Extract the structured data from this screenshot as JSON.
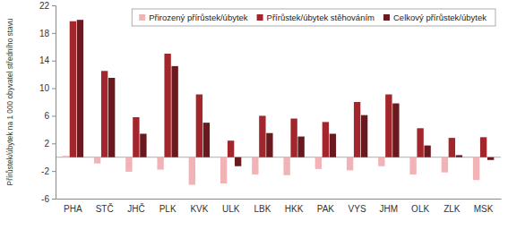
{
  "chart_data": {
    "type": "bar",
    "y_label": "Přírůstek/úbytek na 1 000 obyvatel středního stavu",
    "categories": [
      "PHA",
      "STČ",
      "JHČ",
      "PLK",
      "KVK",
      "ULK",
      "LBK",
      "HKK",
      "PAK",
      "VYS",
      "JHM",
      "OLK",
      "ZLK",
      "MSK"
    ],
    "series": [
      {
        "name": "Přirozený přírůstek/úbytek",
        "color": "#f2b3b6",
        "values": [
          0.2,
          -0.9,
          -2.1,
          -1.8,
          -4.0,
          -3.8,
          -2.5,
          -2.6,
          -1.7,
          -1.9,
          -1.3,
          -2.5,
          -2.2,
          -3.3
        ]
      },
      {
        "name": "Přírůstek/úbytek stěhováním",
        "color": "#a3262d",
        "values": [
          19.7,
          12.5,
          5.8,
          15.0,
          9.1,
          2.4,
          6.0,
          5.6,
          5.1,
          8.0,
          9.1,
          4.2,
          2.8,
          2.9
        ]
      },
      {
        "name": "Celkový přírůstek/úbytek",
        "color": "#6a1a1f",
        "values": [
          19.9,
          11.5,
          3.4,
          13.2,
          5.0,
          -1.3,
          3.5,
          3.0,
          3.4,
          6.1,
          7.8,
          1.7,
          0.3,
          -0.4
        ]
      }
    ],
    "ylim": [
      -6,
      22
    ],
    "yticks": [
      -6,
      -2,
      2,
      6,
      10,
      14,
      18,
      22
    ],
    "grid": false,
    "legend": "top-right"
  }
}
